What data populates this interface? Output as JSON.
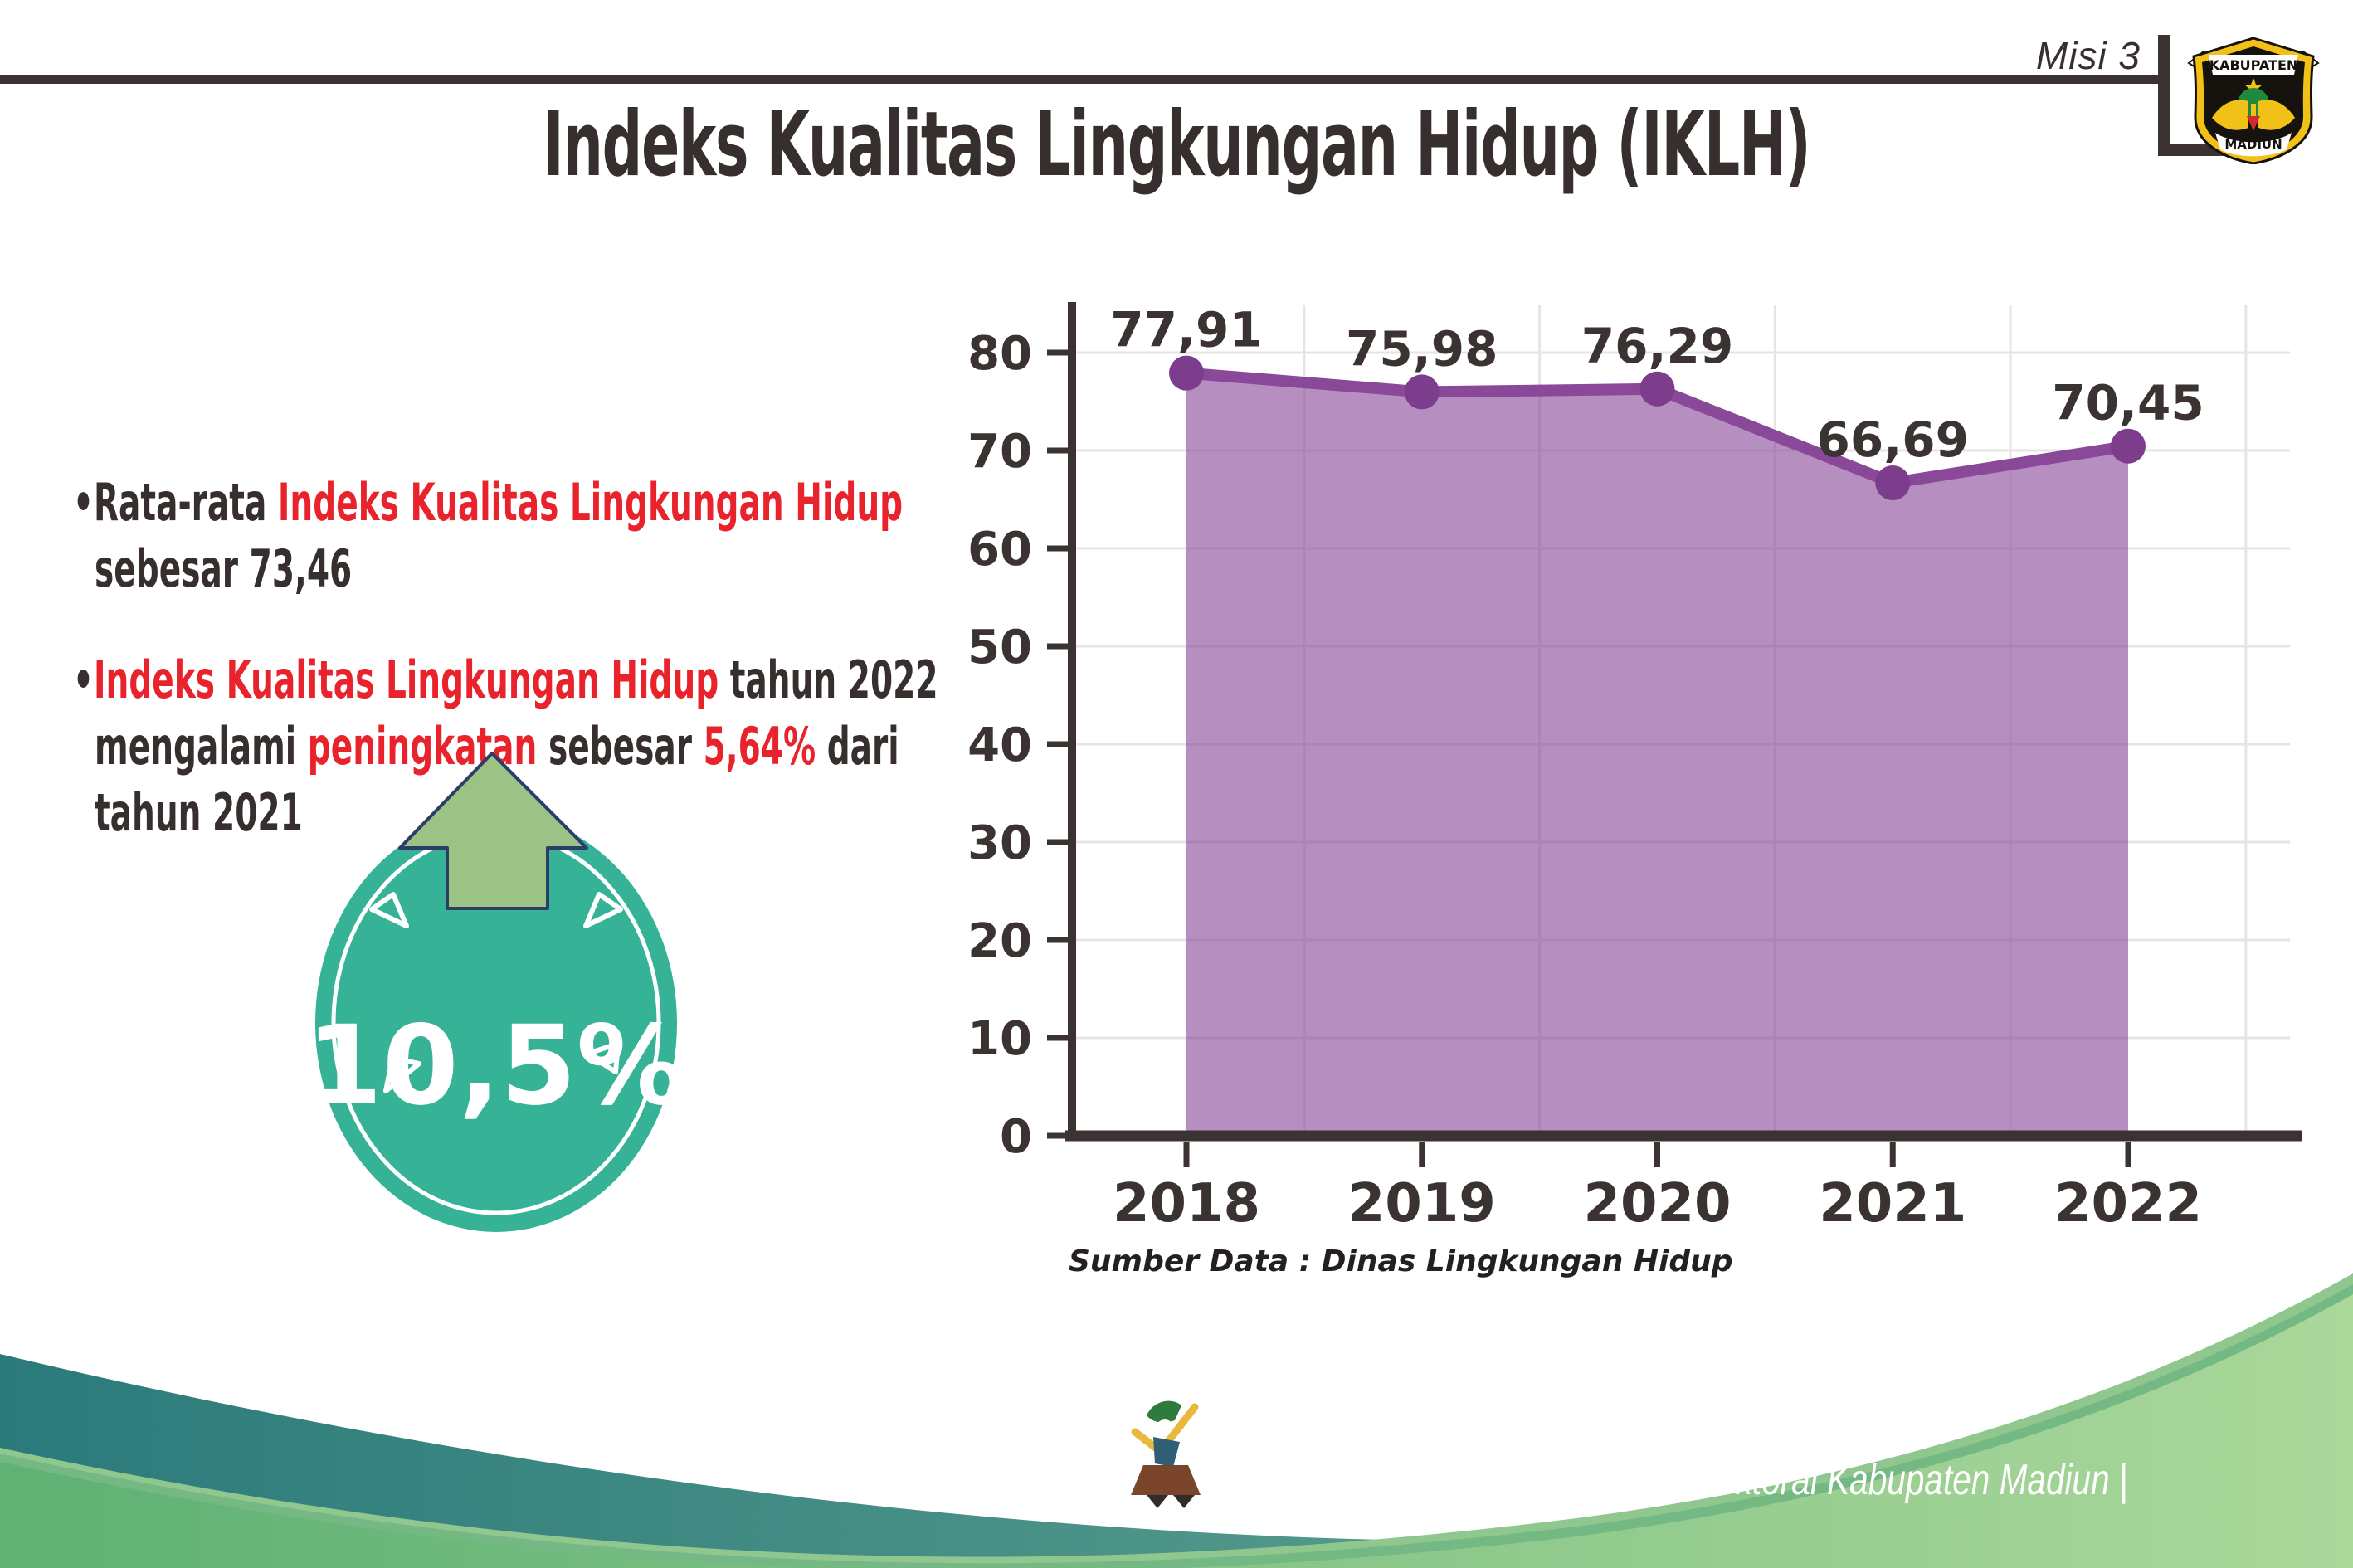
{
  "header": {
    "mission_label": "Misi 3",
    "title": "Indeks Kualitas Lingkungan Hidup (IKLH)",
    "logo": {
      "top_text": "KABUPATEN",
      "bottom_text": "MADIUN"
    }
  },
  "bullets": [
    {
      "lines": [
        [
          {
            "t": "•",
            "c": "dark"
          },
          {
            "t": "Rata-rata ",
            "c": "dark"
          },
          {
            "t": "Indeks Kualitas Lingkungan Hidup",
            "c": "red"
          }
        ],
        [
          {
            "t": "sebesar 73,46",
            "c": "dark"
          }
        ]
      ]
    },
    {
      "lines": [
        [
          {
            "t": "•",
            "c": "dark"
          },
          {
            "t": "Indeks Kualitas Lingkungan Hidup",
            "c": "red"
          },
          {
            "t": " tahun 2022",
            "c": "dark"
          }
        ],
        [
          {
            "t": "mengalami ",
            "c": "dark"
          },
          {
            "t": "peningkatan",
            "c": "red"
          },
          {
            "t": " sebesar ",
            "c": "dark"
          },
          {
            "t": "5,64%",
            "c": "red"
          },
          {
            "t": " dari",
            "c": "dark"
          }
        ],
        [
          {
            "t": "tahun 2021",
            "c": "dark"
          }
        ]
      ]
    }
  ],
  "badge": {
    "value": "10,5%"
  },
  "chart_data": {
    "type": "area",
    "categories": [
      "2018",
      "2019",
      "2020",
      "2021",
      "2022"
    ],
    "values": [
      77.91,
      75.98,
      76.29,
      66.69,
      70.45
    ],
    "value_labels": [
      "77,91",
      "75,98",
      "76,29",
      "66,69",
      "70,45"
    ],
    "ylim": [
      0,
      80
    ],
    "ytick_interval": 10,
    "grid": true,
    "legend": false,
    "source": "Sumber Data : Dinas Lingkungan Hidup"
  },
  "footer": {
    "credit": "Media Infografis Data Statistik Sektoral Kabupaten Madiun |"
  },
  "theme": {
    "dark_text": "#372E2E",
    "red_text": "#E8232C",
    "area_fill": "rgba(138,72,153,0.62)",
    "line_color": "#8A4899",
    "marker_color": "#7C3D8D",
    "grid_color": "#E7E4E4",
    "axis_color": "#3B3232",
    "badge_teal": "#36B397",
    "arrow_green": "#9CC285",
    "arrow_outline": "#2E3D68",
    "footer_teal_dark": "#2B7A7B",
    "footer_teal_light": "#6FAE95",
    "footer_green_dark": "#5FB174",
    "footer_green_light": "#AAD79A",
    "footer_green_mid": "#74B983",
    "footer_green_pale": "#8FC78E",
    "logo_gold": "#F2C117",
    "logo_dark": "#16120D"
  }
}
